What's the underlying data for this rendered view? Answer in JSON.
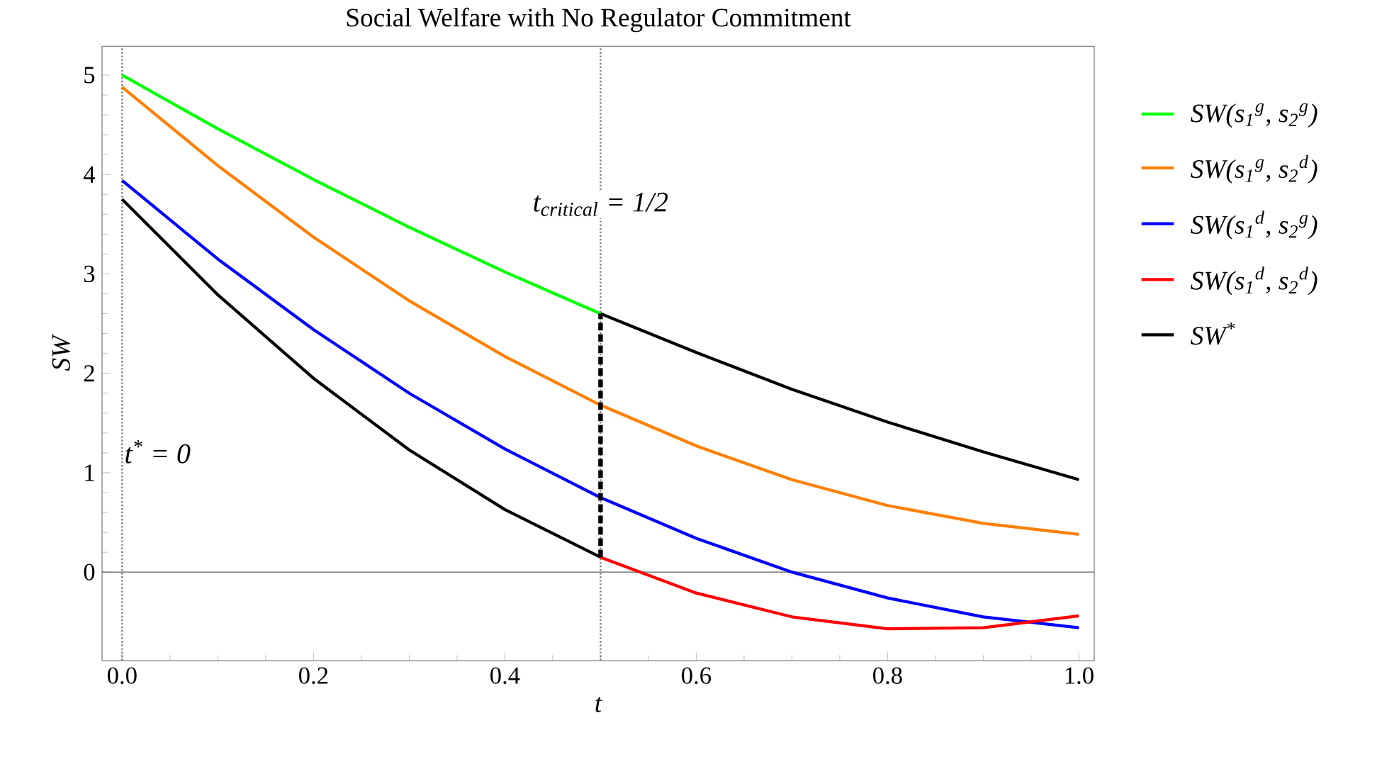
{
  "chart_data": {
    "type": "line",
    "title": "Social Welfare with No Regulator Commitment",
    "xlabel": "t",
    "ylabel": "SW",
    "x": [
      0,
      0.1,
      0.2,
      0.3,
      0.4,
      0.5,
      0.6,
      0.7,
      0.8,
      0.9,
      1.0
    ],
    "series": [
      {
        "name": "SW(s$_{1}$$^{g}$, s$_{2}$$^{g}$)",
        "color": "#00ff00",
        "values": [
          5.0,
          4.46,
          3.95,
          3.47,
          3.02,
          2.6,
          null,
          null,
          null,
          null,
          null
        ]
      },
      {
        "name": "SW(s$_{1}$$^{g}$, s$_{2}$$^{d}$)",
        "color": "#ff8000",
        "values": [
          4.88,
          4.09,
          3.37,
          2.73,
          2.17,
          1.68,
          1.27,
          0.93,
          0.67,
          0.49,
          0.38
        ]
      },
      {
        "name": "SW(s$_{1}$$^{d}$, s$_{2}$$^{g}$)",
        "color": "#0000ff",
        "values": [
          3.94,
          3.15,
          2.44,
          1.8,
          1.24,
          0.75,
          0.34,
          0.0,
          -0.26,
          -0.45,
          -0.56
        ]
      },
      {
        "name": "SW(s$_{1}$$^{d}$, s$_{2}$$^{d}$)",
        "color": "#ff0000",
        "values": [
          null,
          null,
          null,
          null,
          null,
          0.15,
          -0.21,
          -0.45,
          -0.57,
          -0.56,
          -0.44
        ]
      },
      {
        "name": "SW$^{*}$",
        "color": "#000000",
        "x": [
          0,
          0.1,
          0.2,
          0.3,
          0.4,
          0.5,
          0.5,
          0.6,
          0.7,
          0.8,
          0.9,
          1.0
        ],
        "values": [
          3.75,
          2.79,
          1.95,
          1.23,
          0.63,
          0.15,
          2.6,
          2.21,
          1.84,
          1.51,
          1.21,
          0.93
        ]
      }
    ],
    "xlim": [
      -0.021,
      1.016
    ],
    "ylim": [
      -0.89,
      5.29
    ],
    "xticks": [
      {
        "value": 0,
        "label": "0.0"
      },
      0.2,
      0.4,
      0.6,
      0.8,
      {
        "value": 1,
        "label": "1.0"
      }
    ],
    "yticks": [
      0,
      1,
      2,
      3,
      4,
      5
    ],
    "ref_lines": [
      {
        "axis": "x",
        "value": 0,
        "label": "t$^{*}$ = 0",
        "color": "#808080",
        "line_style": "dotted"
      },
      {
        "axis": "x",
        "value": 0.5,
        "label": "t$_{critical}$ = 1/2",
        "color": "#808080",
        "line_style": "dotted"
      },
      {
        "axis": "y",
        "value": 0,
        "color": "#606060",
        "line_style": "solid"
      }
    ],
    "legend": "right",
    "grid": false,
    "marker": "none",
    "line_style": "solid"
  }
}
